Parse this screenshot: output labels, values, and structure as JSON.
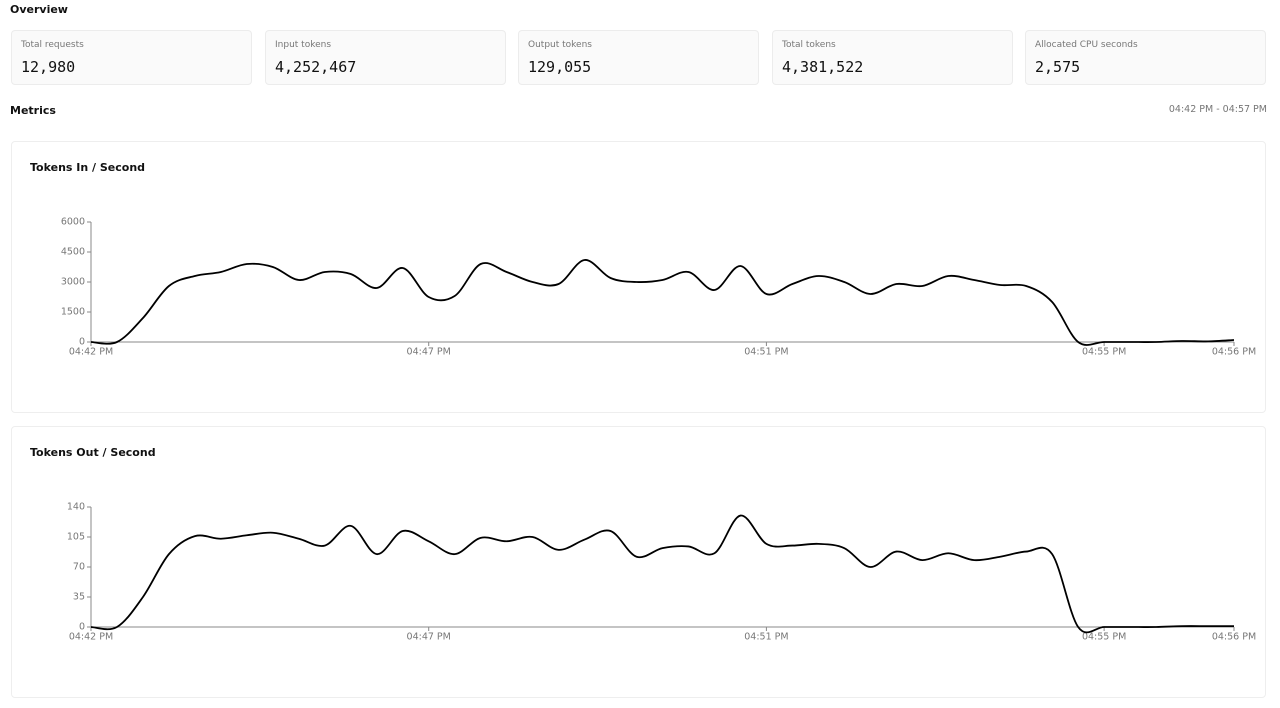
{
  "header": {
    "title": "Overview"
  },
  "stats": [
    {
      "label": "Total requests",
      "value": "12,980"
    },
    {
      "label": "Input tokens",
      "value": "4,252,467"
    },
    {
      "label": "Output tokens",
      "value": "129,055"
    },
    {
      "label": "Total tokens",
      "value": "4,381,522"
    },
    {
      "label": "Allocated CPU seconds",
      "value": "2,575"
    }
  ],
  "metrics": {
    "title": "Metrics",
    "range": "04:42 PM - 04:57 PM"
  },
  "chart_data": [
    {
      "type": "line",
      "title": "Tokens In / Second",
      "color": "#000000",
      "categories": [
        "04:42 PM",
        null,
        null,
        null,
        null,
        null,
        null,
        null,
        null,
        null,
        null,
        null,
        null,
        "04:47 PM",
        null,
        null,
        null,
        null,
        null,
        null,
        null,
        null,
        null,
        null,
        null,
        null,
        "04:51 PM",
        null,
        null,
        null,
        null,
        null,
        null,
        null,
        null,
        null,
        null,
        null,
        null,
        "04:55 PM",
        null,
        null,
        null,
        null,
        "04:56 PM"
      ],
      "values": [
        0,
        0,
        1200,
        2800,
        3300,
        3500,
        3900,
        3750,
        3100,
        3500,
        3400,
        2700,
        3700,
        2250,
        2300,
        3900,
        3500,
        3000,
        2900,
        4100,
        3200,
        3000,
        3100,
        3500,
        2600,
        3800,
        2400,
        2900,
        3300,
        3000,
        2400,
        2900,
        2800,
        3300,
        3100,
        2850,
        2800,
        2000,
        0,
        0,
        0,
        0,
        50,
        30,
        100
      ],
      "ylim": [
        0,
        6000
      ],
      "yticks": [
        0,
        1500,
        3000,
        4500,
        6000
      ]
    },
    {
      "type": "line",
      "title": "Tokens Out / Second",
      "color": "#000000",
      "categories": [
        "04:42 PM",
        null,
        null,
        null,
        null,
        null,
        null,
        null,
        null,
        null,
        null,
        null,
        null,
        "04:47 PM",
        null,
        null,
        null,
        null,
        null,
        null,
        null,
        null,
        null,
        null,
        null,
        null,
        "04:51 PM",
        null,
        null,
        null,
        null,
        null,
        null,
        null,
        null,
        null,
        null,
        null,
        null,
        "04:55 PM",
        null,
        null,
        null,
        null,
        "04:56 PM"
      ],
      "values": [
        0,
        0,
        35,
        85,
        106,
        103,
        107,
        110,
        103,
        95,
        118,
        85,
        112,
        100,
        85,
        104,
        100,
        105,
        90,
        102,
        112,
        82,
        92,
        94,
        86,
        130,
        97,
        95,
        97,
        92,
        70,
        88,
        78,
        86,
        78,
        82,
        88,
        85,
        0,
        0,
        0,
        0,
        1,
        1,
        1
      ],
      "ylim": [
        0,
        140
      ],
      "yticks": [
        0,
        35,
        70,
        105,
        140
      ]
    }
  ]
}
